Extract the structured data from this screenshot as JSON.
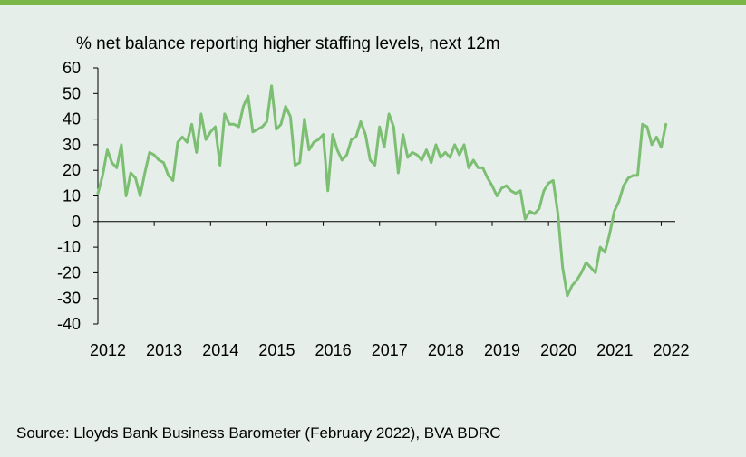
{
  "chart_data": {
    "type": "line",
    "title": "% net balance reporting higher staffing levels, next 12m",
    "source": "Source: Lloyds Bank Business Barometer (February 2022), BVA BDRC",
    "ylim": [
      -40,
      60
    ],
    "yticks": [
      60,
      50,
      40,
      30,
      20,
      10,
      0,
      -10,
      -20,
      -30,
      -40
    ],
    "xlim": [
      2012,
      2022.25
    ],
    "xticks": [
      "2012",
      "2013",
      "2014",
      "2015",
      "2016",
      "2017",
      "2018",
      "2019",
      "2020",
      "2021",
      "2022"
    ],
    "grid": false,
    "legend": "none",
    "line_color": "#7dbf72",
    "series": [
      {
        "x": [
          2012.0,
          2012.083,
          2012.167,
          2012.25,
          2012.333,
          2012.417,
          2012.5,
          2012.583,
          2012.667,
          2012.75,
          2012.833,
          2012.917,
          2013.0,
          2013.083,
          2013.167,
          2013.25,
          2013.333,
          2013.417,
          2013.5,
          2013.583,
          2013.667,
          2013.75,
          2013.833,
          2013.917,
          2014.0,
          2014.083,
          2014.167,
          2014.25,
          2014.333,
          2014.417,
          2014.5,
          2014.583,
          2014.667,
          2014.75,
          2014.833,
          2014.917,
          2015.0,
          2015.083,
          2015.167,
          2015.25,
          2015.333,
          2015.417,
          2015.5,
          2015.583,
          2015.667,
          2015.75,
          2015.833,
          2015.917,
          2016.0,
          2016.083,
          2016.167,
          2016.25,
          2016.333,
          2016.417,
          2016.5,
          2016.583,
          2016.667,
          2016.75,
          2016.833,
          2016.917,
          2017.0,
          2017.083,
          2017.167,
          2017.25,
          2017.333,
          2017.417,
          2017.5,
          2017.583,
          2017.667,
          2017.75,
          2017.833,
          2017.917,
          2018.0,
          2018.083,
          2018.167,
          2018.25,
          2018.333,
          2018.417,
          2018.5,
          2018.583,
          2018.667,
          2018.75,
          2018.833,
          2018.917,
          2019.0,
          2019.083,
          2019.167,
          2019.25,
          2019.333,
          2019.417,
          2019.5,
          2019.583,
          2019.667,
          2019.75,
          2019.833,
          2019.917,
          2020.0,
          2020.083,
          2020.167,
          2020.25,
          2020.333,
          2020.417,
          2020.5,
          2020.583,
          2020.667,
          2020.75,
          2020.833,
          2020.917,
          2021.0,
          2021.083,
          2021.167,
          2021.25,
          2021.333,
          2021.417,
          2021.5,
          2021.583,
          2021.667,
          2021.75,
          2021.833,
          2021.917,
          2022.0,
          2022.083
        ],
        "y": [
          11,
          18,
          28,
          23,
          21,
          30,
          10,
          19,
          17,
          10,
          19,
          27,
          26,
          24,
          23,
          18,
          16,
          31,
          33,
          31,
          38,
          27,
          42,
          32,
          35,
          37,
          22,
          42,
          38,
          38,
          37,
          45,
          49,
          35,
          36,
          37,
          39,
          53,
          36,
          38,
          45,
          41,
          22,
          23,
          40,
          28,
          31,
          32,
          34,
          12,
          34,
          28,
          24,
          26,
          32,
          33,
          39,
          34,
          24,
          22,
          37,
          29,
          42,
          37,
          19,
          34,
          25,
          27,
          26,
          24,
          28,
          23,
          30,
          25,
          27,
          25,
          30,
          26,
          30,
          21,
          24,
          21,
          21,
          17,
          14,
          10,
          13,
          14,
          12,
          11,
          12,
          1,
          4,
          3,
          5,
          12,
          15,
          16,
          3,
          -18,
          -29,
          -25,
          -23,
          -20,
          -16,
          -18,
          -20,
          -10,
          -12,
          -5,
          4,
          8,
          14,
          17,
          18,
          18,
          38,
          37,
          30,
          33,
          29,
          38
        ]
      }
    ]
  }
}
